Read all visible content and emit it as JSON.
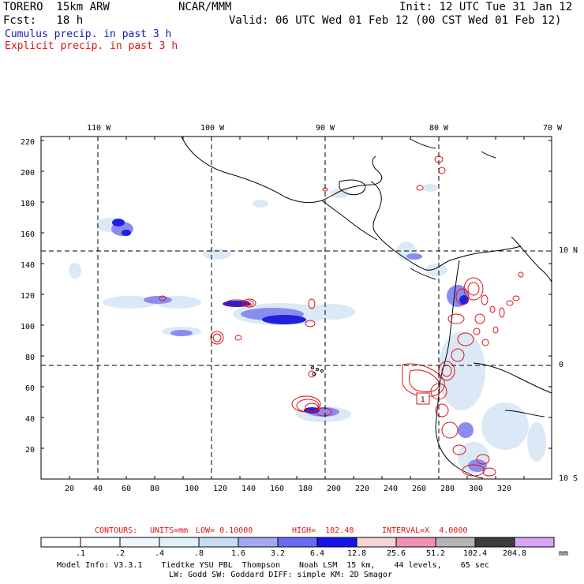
{
  "header": {
    "model": "TORERO  15km ARW",
    "org": "NCAR/MMM",
    "init": "Init: 12 UTC Tue 31 Jan 12",
    "fcst": "Fcst:   18 h",
    "valid": "Valid: 06 UTC Wed 01 Feb 12 (00 CST Wed 01 Feb 12)",
    "field_cumulus": "Cumulus precip. in past 3 h",
    "field_explicit": "Explicit precip. in past 3 h"
  },
  "colors": {
    "cumulus_text": "#1a1ab4",
    "explicit_text": "#e01010",
    "contour": "#e01010",
    "coast": "#000000"
  },
  "axes": {
    "lon_labels": [
      "110 W",
      "100 W",
      "90 W",
      "80 W",
      "70 W"
    ],
    "lat_labels": [
      "10 N",
      "0",
      "10 S"
    ],
    "x_ticks": [
      "20",
      "40",
      "60",
      "80",
      "100",
      "120",
      "140",
      "160",
      "180",
      "200",
      "220",
      "240",
      "260",
      "280",
      "300",
      "320"
    ],
    "y_ticks": [
      "220",
      "200",
      "180",
      "160",
      "140",
      "120",
      "100",
      "80",
      "60",
      "40",
      "20"
    ]
  },
  "contour_info": {
    "title": "CONTOURS:",
    "units": "UNITS=mm",
    "low": "LOW= 0.10000",
    "high": "HIGH=  102.40",
    "interval": "INTERVAL=X  4.0000"
  },
  "colorbar": {
    "labels": [
      ".1",
      ".2",
      ".4",
      ".8",
      "1.6",
      "3.2",
      "6.4",
      "12.8",
      "25.6",
      "51.2",
      "102.4",
      "204.8"
    ],
    "unit": "mm",
    "colors": [
      "#ffffff",
      "#ffffff",
      "#eef5fb",
      "#e0f2f8",
      "#c8dcf4",
      "#a4a8f4",
      "#6a6af4",
      "#1414e8",
      "#f6d4d4",
      "#f490b4",
      "#b4b4b4",
      "#3c3c3c",
      "#d8a4f4"
    ]
  },
  "model_info": {
    "line1": "Model Info: V3.3.1    Tiedtke YSU PBL  Thompson    Noah LSM  15 km,    44 levels,    65 sec",
    "line2": "LW: Godd SW: Goddard DIFF: simple KM: 2D Smagor"
  },
  "map_marker": "1"
}
